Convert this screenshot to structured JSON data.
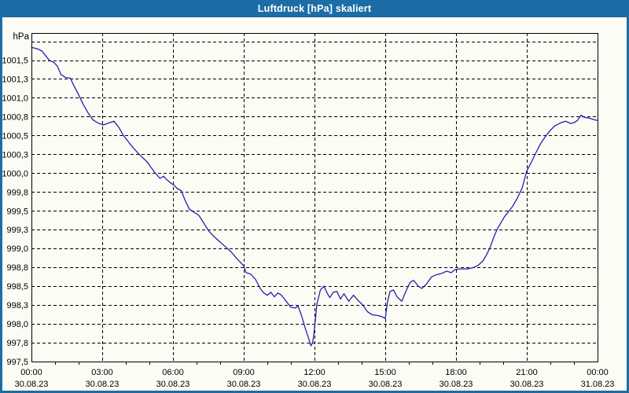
{
  "window": {
    "title": "Luftdruck [hPa] skaliert"
  },
  "colors": {
    "titlebar_bg": "#1c6da6",
    "window_border": "#1c6da6",
    "title_text": "#ffffff",
    "content_bg": "#fcfcf5",
    "grid": "#000000",
    "axis": "#000000",
    "label_text": "#000000",
    "line": "#2020b2"
  },
  "chart_data": {
    "type": "line",
    "title": "Luftdruck [hPa] skaliert",
    "ylabel": "hPa",
    "xlabel": "",
    "grid": "dashed",
    "legend_position": "none",
    "ylim": [
      997.5,
      1001.86
    ],
    "y_grid_step": 0.25,
    "y_unlabeled_grid_values": [
      1001.75
    ],
    "y_ticks": [
      {
        "value": 1001.5,
        "label": "1001,5"
      },
      {
        "value": 1001.25,
        "label": "1001,3"
      },
      {
        "value": 1001.0,
        "label": "1001,0"
      },
      {
        "value": 1000.75,
        "label": "1000,8"
      },
      {
        "value": 1000.5,
        "label": "1000,5"
      },
      {
        "value": 1000.25,
        "label": "1000,3"
      },
      {
        "value": 1000.0,
        "label": "1000,0"
      },
      {
        "value": 999.75,
        "label": "999,8"
      },
      {
        "value": 999.5,
        "label": "999,5"
      },
      {
        "value": 999.25,
        "label": "999,3"
      },
      {
        "value": 999.0,
        "label": "999,0"
      },
      {
        "value": 998.75,
        "label": "998,8"
      },
      {
        "value": 998.5,
        "label": "998,5"
      },
      {
        "value": 998.25,
        "label": "998,3"
      },
      {
        "value": 998.0,
        "label": "998,0"
      },
      {
        "value": 997.75,
        "label": "997,8"
      },
      {
        "value": 997.5,
        "label": "997,5"
      }
    ],
    "xlim_hours": [
      0,
      24
    ],
    "x_major_step_hours": 3,
    "x_minor_step_hours": 1,
    "x_ticks": [
      {
        "hour": 0,
        "time": "00:00",
        "date": "30.08.23"
      },
      {
        "hour": 3,
        "time": "03:00",
        "date": "30.08.23"
      },
      {
        "hour": 6,
        "time": "06:00",
        "date": "30.08.23"
      },
      {
        "hour": 9,
        "time": "09:00",
        "date": "30.08.23"
      },
      {
        "hour": 12,
        "time": "12:00",
        "date": "30.08.23"
      },
      {
        "hour": 15,
        "time": "15:00",
        "date": "30.08.23"
      },
      {
        "hour": 18,
        "time": "18:00",
        "date": "30.08.23"
      },
      {
        "hour": 21,
        "time": "21:00",
        "date": "30.08.23"
      },
      {
        "hour": 24,
        "time": "00:00",
        "date": "31.08.23"
      }
    ],
    "series": [
      {
        "name": "Luftdruck",
        "color": "#2020b2",
        "points": [
          [
            0.0,
            1001.67
          ],
          [
            0.25,
            1001.65
          ],
          [
            0.45,
            1001.62
          ],
          [
            0.6,
            1001.56
          ],
          [
            0.75,
            1001.5
          ],
          [
            0.95,
            1001.47
          ],
          [
            1.1,
            1001.42
          ],
          [
            1.25,
            1001.31
          ],
          [
            1.45,
            1001.27
          ],
          [
            1.65,
            1001.26
          ],
          [
            1.8,
            1001.16
          ],
          [
            2.0,
            1001.04
          ],
          [
            2.2,
            1000.91
          ],
          [
            2.4,
            1000.8
          ],
          [
            2.6,
            1000.71
          ],
          [
            2.85,
            1000.66
          ],
          [
            3.05,
            1000.64
          ],
          [
            3.3,
            1000.67
          ],
          [
            3.5,
            1000.69
          ],
          [
            3.7,
            1000.61
          ],
          [
            3.9,
            1000.5
          ],
          [
            4.05,
            1000.44
          ],
          [
            4.3,
            1000.34
          ],
          [
            4.6,
            1000.24
          ],
          [
            4.9,
            1000.15
          ],
          [
            5.2,
            1000.02
          ],
          [
            5.45,
            999.93
          ],
          [
            5.6,
            999.96
          ],
          [
            5.75,
            999.91
          ],
          [
            5.9,
            999.87
          ],
          [
            6.05,
            999.84
          ],
          [
            6.2,
            999.79
          ],
          [
            6.35,
            999.77
          ],
          [
            6.5,
            999.65
          ],
          [
            6.7,
            999.52
          ],
          [
            6.9,
            999.48
          ],
          [
            7.1,
            999.44
          ],
          [
            7.3,
            999.34
          ],
          [
            7.5,
            999.24
          ],
          [
            7.7,
            999.17
          ],
          [
            7.95,
            999.1
          ],
          [
            8.2,
            999.03
          ],
          [
            8.45,
            998.96
          ],
          [
            8.7,
            998.87
          ],
          [
            9.0,
            998.77
          ],
          [
            9.1,
            998.68
          ],
          [
            9.3,
            998.66
          ],
          [
            9.5,
            998.59
          ],
          [
            9.7,
            998.47
          ],
          [
            9.85,
            998.41
          ],
          [
            10.0,
            998.38
          ],
          [
            10.15,
            998.42
          ],
          [
            10.3,
            998.36
          ],
          [
            10.45,
            998.41
          ],
          [
            10.6,
            998.38
          ],
          [
            10.8,
            998.3
          ],
          [
            11.0,
            998.22
          ],
          [
            11.2,
            998.21
          ],
          [
            11.3,
            998.24
          ],
          [
            11.45,
            998.11
          ],
          [
            11.6,
            997.95
          ],
          [
            11.75,
            997.81
          ],
          [
            11.85,
            997.71
          ],
          [
            11.92,
            997.75
          ],
          [
            11.97,
            997.85
          ],
          [
            12.1,
            998.26
          ],
          [
            12.25,
            998.45
          ],
          [
            12.4,
            998.5
          ],
          [
            12.55,
            998.4
          ],
          [
            12.65,
            998.35
          ],
          [
            12.8,
            998.42
          ],
          [
            12.95,
            998.43
          ],
          [
            13.1,
            998.33
          ],
          [
            13.25,
            998.4
          ],
          [
            13.45,
            998.3
          ],
          [
            13.65,
            998.38
          ],
          [
            13.85,
            998.31
          ],
          [
            14.05,
            998.25
          ],
          [
            14.25,
            998.16
          ],
          [
            14.45,
            998.12
          ],
          [
            14.7,
            998.11
          ],
          [
            14.9,
            998.09
          ],
          [
            15.0,
            998.07
          ],
          [
            15.1,
            998.3
          ],
          [
            15.2,
            998.43
          ],
          [
            15.35,
            998.45
          ],
          [
            15.5,
            998.36
          ],
          [
            15.7,
            998.3
          ],
          [
            15.9,
            998.45
          ],
          [
            16.05,
            998.55
          ],
          [
            16.2,
            998.58
          ],
          [
            16.4,
            998.5
          ],
          [
            16.55,
            998.47
          ],
          [
            16.75,
            998.53
          ],
          [
            16.95,
            998.62
          ],
          [
            17.15,
            998.65
          ],
          [
            17.4,
            998.67
          ],
          [
            17.6,
            998.7
          ],
          [
            17.8,
            998.68
          ],
          [
            17.95,
            998.72
          ],
          [
            18.2,
            998.73
          ],
          [
            18.5,
            998.73
          ],
          [
            18.75,
            998.75
          ],
          [
            18.95,
            998.78
          ],
          [
            19.15,
            998.84
          ],
          [
            19.3,
            998.92
          ],
          [
            19.45,
            999.02
          ],
          [
            19.6,
            999.15
          ],
          [
            19.75,
            999.26
          ],
          [
            19.9,
            999.34
          ],
          [
            20.05,
            999.42
          ],
          [
            20.2,
            999.48
          ],
          [
            20.4,
            999.56
          ],
          [
            20.6,
            999.67
          ],
          [
            20.8,
            999.8
          ],
          [
            21.0,
            1000.03
          ],
          [
            21.2,
            1000.15
          ],
          [
            21.4,
            1000.28
          ],
          [
            21.6,
            1000.4
          ],
          [
            21.8,
            1000.49
          ],
          [
            22.0,
            1000.57
          ],
          [
            22.2,
            1000.63
          ],
          [
            22.45,
            1000.67
          ],
          [
            22.65,
            1000.69
          ],
          [
            22.85,
            1000.66
          ],
          [
            23.0,
            1000.67
          ],
          [
            23.15,
            1000.7
          ],
          [
            23.3,
            1000.77
          ],
          [
            23.45,
            1000.74
          ],
          [
            23.65,
            1000.73
          ],
          [
            23.85,
            1000.71
          ],
          [
            24.0,
            1000.7
          ]
        ]
      }
    ]
  }
}
